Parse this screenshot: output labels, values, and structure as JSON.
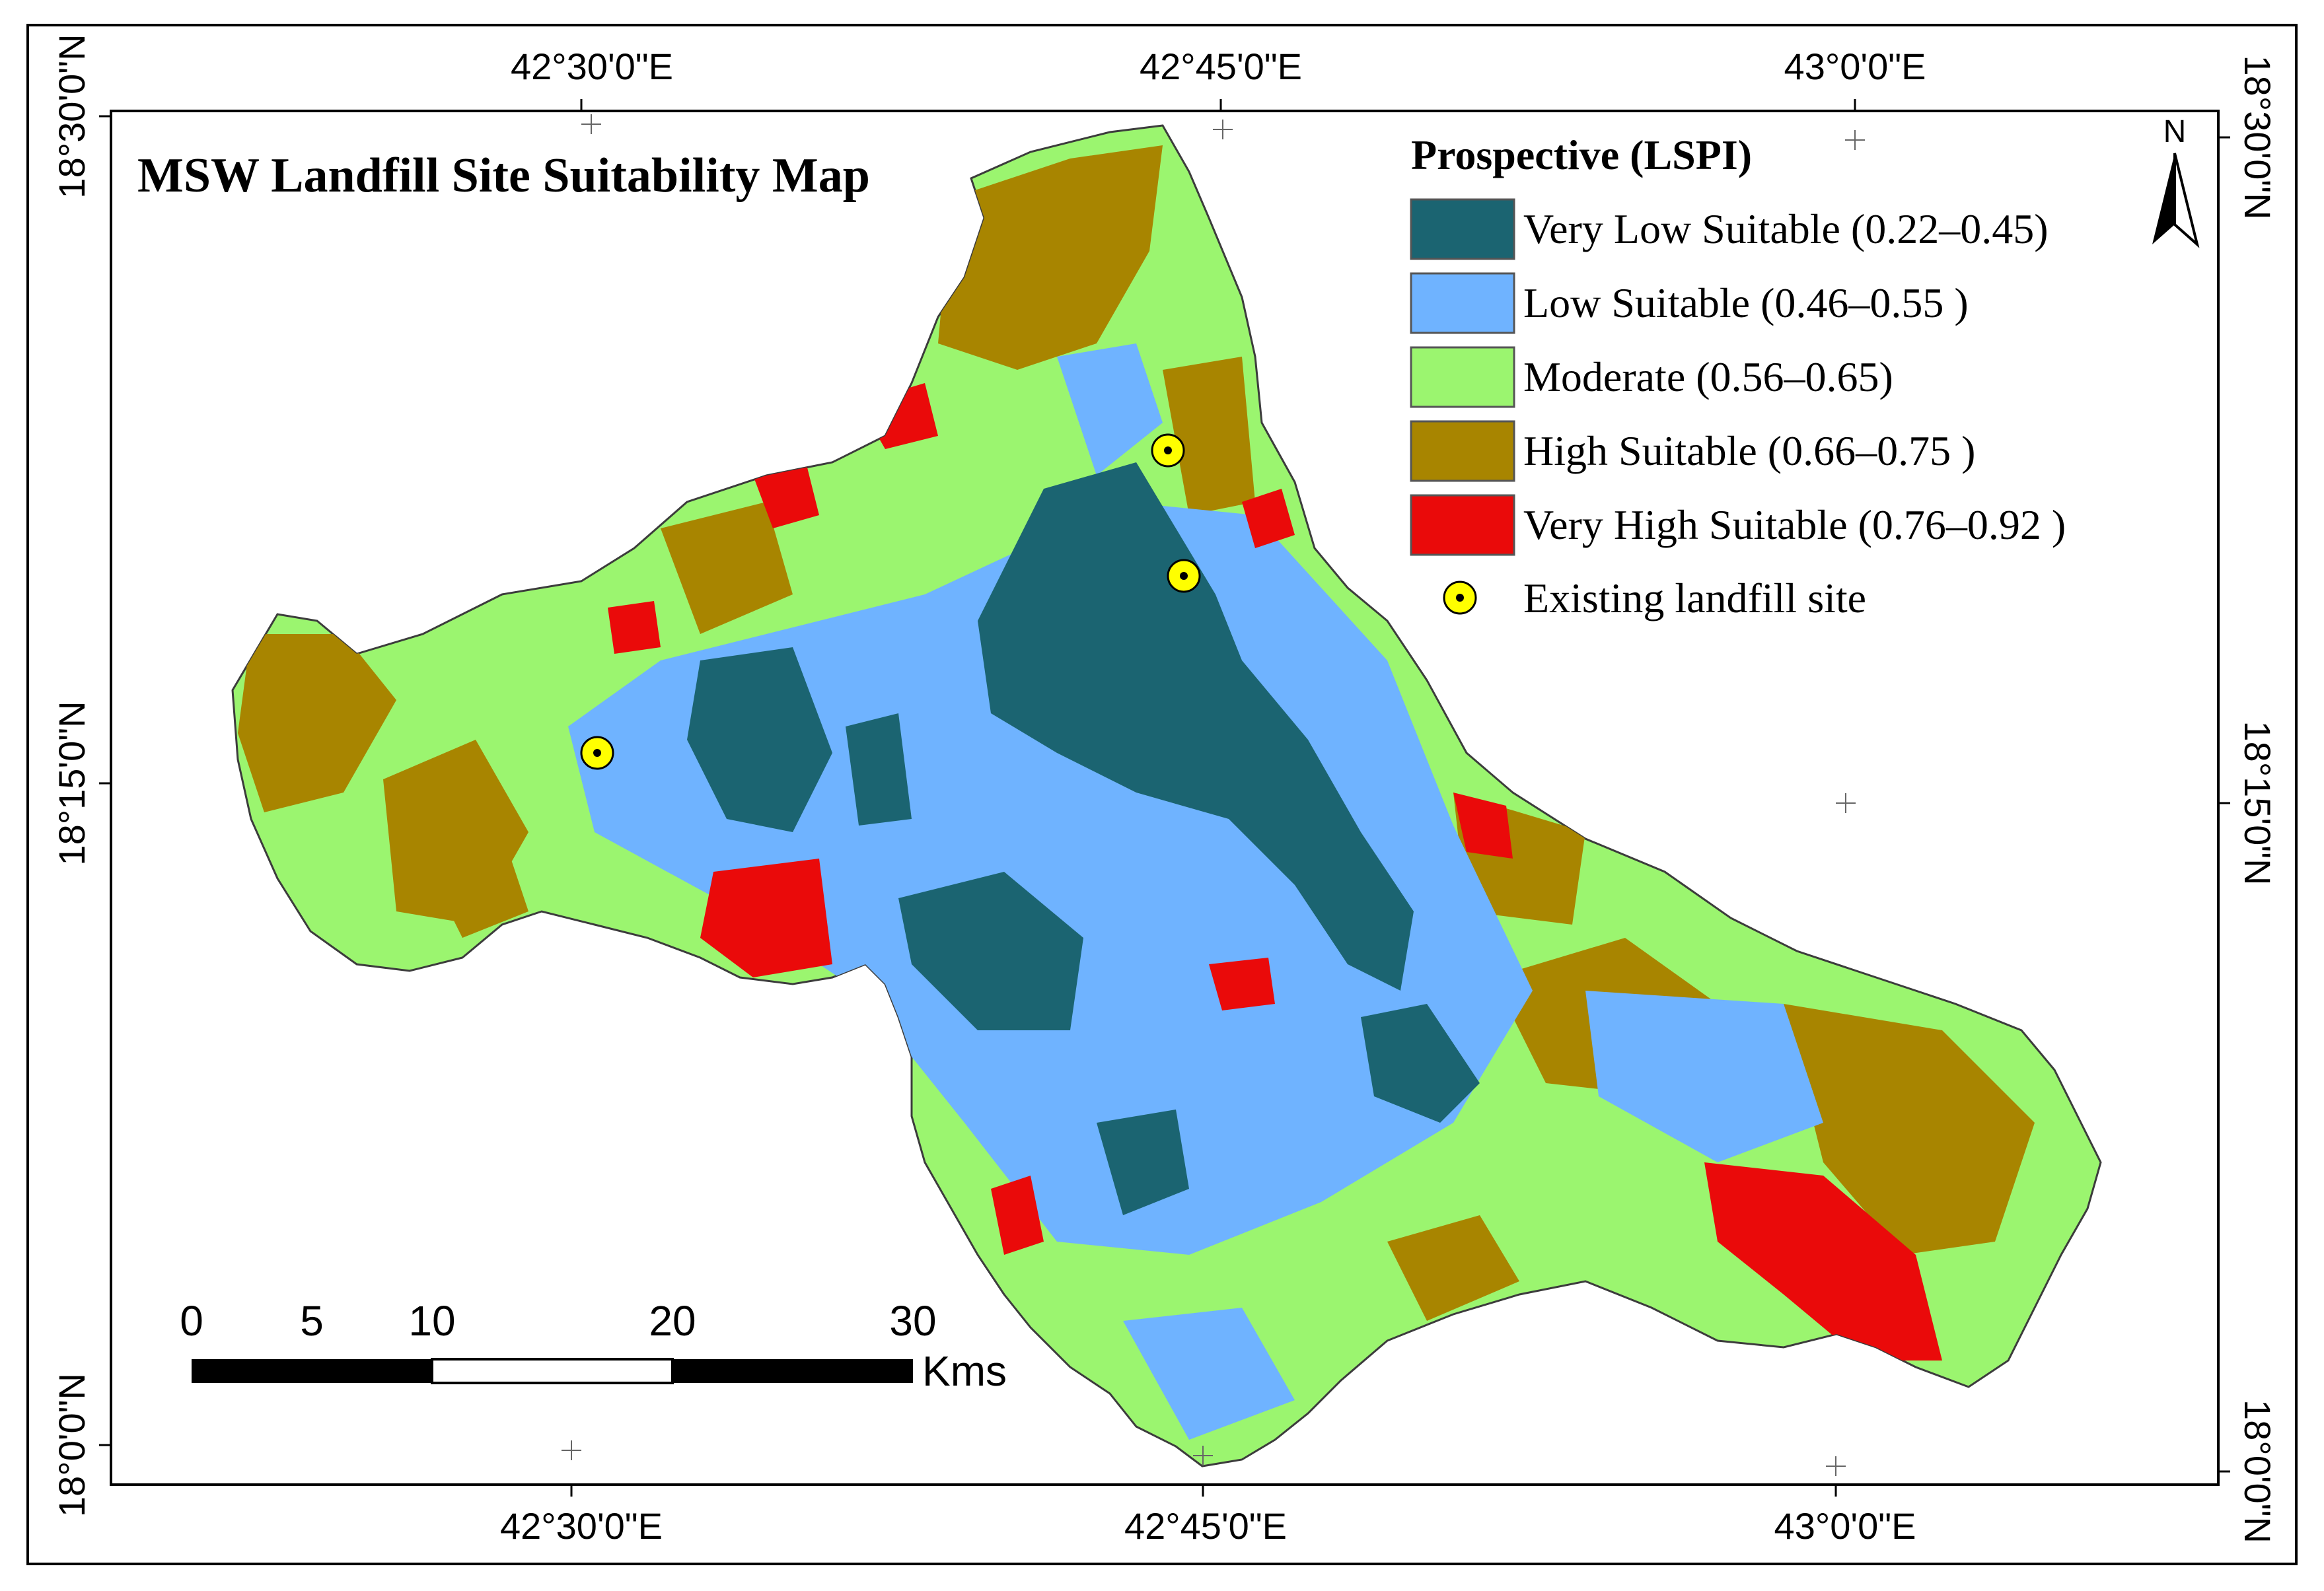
{
  "map": {
    "title": "MSW Landfill Site Suitability Map",
    "graticule": {
      "top_lon": [
        "42°30'0\"E",
        "42°45'0\"E",
        "43°0'0\"E"
      ],
      "bottom_lon": [
        "42°30'0\"E",
        "42°45'0\"E",
        "43°0'0\"E"
      ],
      "left_lat": [
        "18°30'0\"N",
        "18°15'0\"N",
        "18°0'0\"N"
      ],
      "right_lat": [
        "18°30'0\"N",
        "18°15'0\"N",
        "18°0'0\"N"
      ]
    },
    "legend": {
      "title": "Prospective (LSPI)",
      "items": [
        {
          "label": "Very Low Suitable (0.22–0.45)",
          "color": "#1b6471"
        },
        {
          "label": "Low Suitable (0.46–0.55 )",
          "color": "#6fb3ff"
        },
        {
          "label": "Moderate (0.56–0.65)",
          "color": "#9bf56f"
        },
        {
          "label": "High Suitable (0.66–0.75 )",
          "color": "#a88500"
        },
        {
          "label": "Very High Suitable (0.76–0.92 )",
          "color": "#ea0a0a"
        }
      ],
      "landfill_label": "Existing landfill site",
      "landfill_color": "#ffff00"
    },
    "scale_bar": {
      "ticks": [
        "0",
        "5",
        "10",
        "20",
        "30"
      ],
      "unit": "Kms"
    },
    "north_arrow": {
      "label": "N",
      "icon": "north-arrow-icon"
    },
    "landfill_sites_count": 3
  }
}
